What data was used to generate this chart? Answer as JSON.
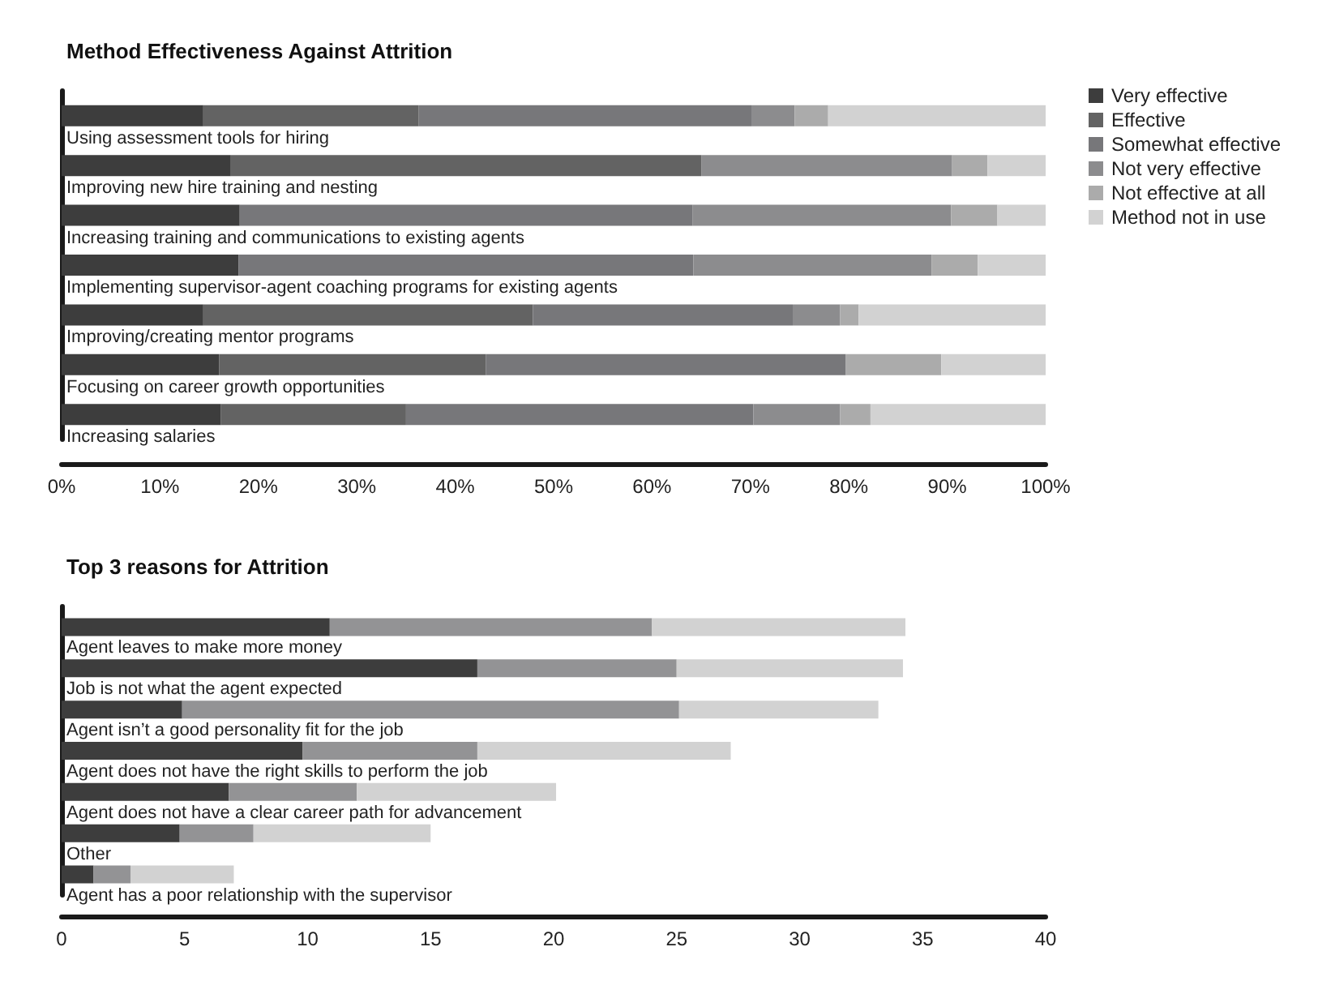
{
  "chart_data": [
    {
      "type": "bar",
      "title": "Method Effectiveness Against Attrition",
      "orientation": "horizontal",
      "stacked": true,
      "legend": "top right",
      "categories": [
        "Using assessment tools for hiring",
        "Improving new hire training and nesting",
        "Increasing training and communications to existing agents",
        "Implementing supervisor-agent coaching programs for existing agents",
        "Improving/creating mentor programs",
        "Focusing on career growth opportunities",
        "Increasing salaries"
      ],
      "series": [
        {
          "name": "Very effective",
          "color": "#3d3d3d",
          "values": [
            14.4,
            17.2,
            18.1,
            18.0,
            14.4,
            16.0,
            16.2
          ]
        },
        {
          "name": "Effective",
          "color": "#636363",
          "values": [
            21.9,
            47.8,
            0,
            0,
            33.5,
            27.1,
            18.8
          ]
        },
        {
          "name": "Somewhat effective",
          "color": "#77777a",
          "values": [
            33.8,
            0,
            46.0,
            46.2,
            26.4,
            36.6,
            35.3
          ]
        },
        {
          "name": "Not very effective",
          "color": "#8c8c8e",
          "values": [
            4.4,
            25.5,
            26.3,
            24.2,
            4.8,
            0,
            8.8
          ]
        },
        {
          "name": "Not effective at all",
          "color": "#ababab",
          "values": [
            3.4,
            3.6,
            4.7,
            4.7,
            1.9,
            9.7,
            3.1
          ]
        },
        {
          "name": "Method not in use",
          "color": "#d2d2d2",
          "values": [
            22.1,
            5.9,
            4.9,
            6.9,
            19.0,
            10.6,
            17.8
          ]
        }
      ],
      "xlim": [
        0,
        100
      ],
      "xticks": [
        {
          "value": 0,
          "label": "0%"
        },
        {
          "value": 10,
          "label": "10%"
        },
        {
          "value": 20,
          "label": "20%"
        },
        {
          "value": 30,
          "label": "30%"
        },
        {
          "value": 40,
          "label": "40%"
        },
        {
          "value": 50,
          "label": "50%"
        },
        {
          "value": 60,
          "label": "60%"
        },
        {
          "value": 70,
          "label": "70%"
        },
        {
          "value": 80,
          "label": "80%"
        },
        {
          "value": 90,
          "label": "90%"
        },
        {
          "value": 100,
          "label": "100%"
        }
      ]
    },
    {
      "type": "bar",
      "title": "Top 3 reasons for Attrition",
      "orientation": "horizontal",
      "stacked": true,
      "categories": [
        "Agent leaves to make more money",
        "Job is not what the agent expected",
        "Agent isn’t a good personality fit for the job",
        "Agent does not have the right skills to perform the job",
        "Agent does not have a clear career path for advancement",
        "Other",
        "Agent has a poor relationship with the supervisor"
      ],
      "series": [
        {
          "color": "#3d3d3d",
          "values": [
            10.9,
            16.9,
            4.9,
            9.8,
            6.8,
            4.8,
            1.3
          ]
        },
        {
          "color": "#939395",
          "values": [
            13.1,
            8.1,
            20.2,
            7.1,
            5.2,
            3.0,
            1.5
          ]
        },
        {
          "color": "#d2d2d2",
          "values": [
            10.3,
            9.2,
            8.1,
            10.3,
            8.1,
            7.2,
            4.2
          ]
        }
      ],
      "xlim": [
        0,
        40
      ],
      "xticks": [
        0,
        5,
        10,
        15,
        20,
        25,
        30,
        35,
        40
      ]
    }
  ]
}
